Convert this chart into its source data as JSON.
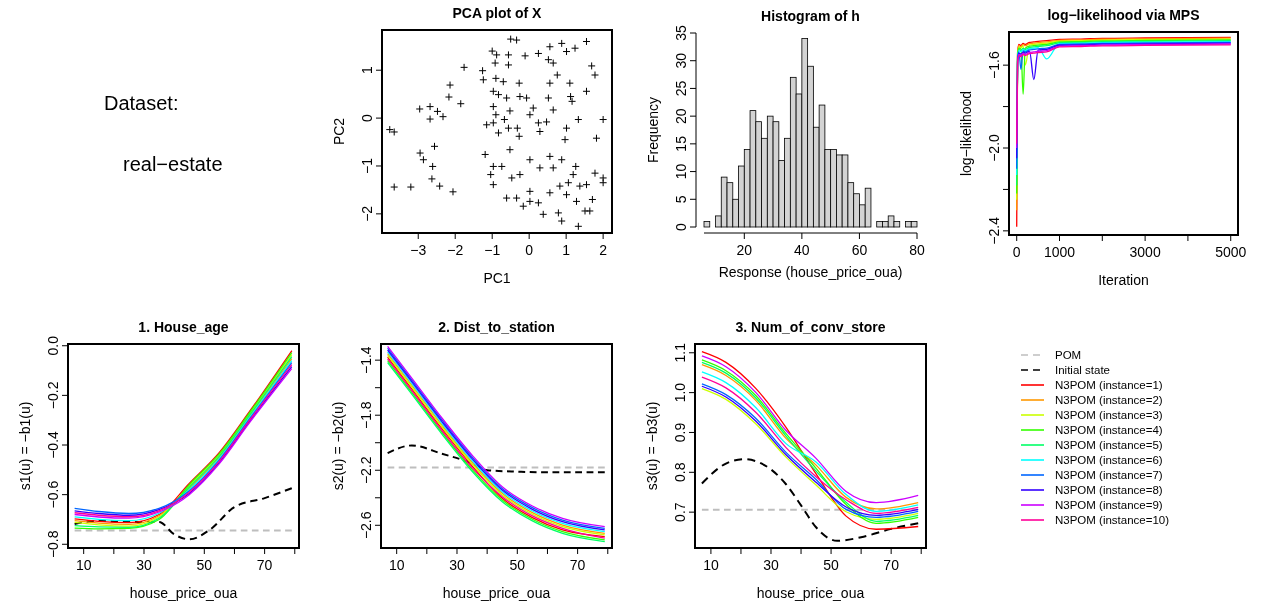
{
  "chart_data": [
    {
      "type": "other",
      "annotations": [
        "Dataset:",
        "real−estate"
      ]
    },
    {
      "type": "scatter",
      "title": "PCA plot of X",
      "xlabel": "PC1",
      "ylabel": "PC2",
      "xlim": [
        -3.98,
        2.24
      ],
      "ylim": [
        -2.4,
        1.84
      ],
      "xticks": [
        {
          "value": -3,
          "label": "−3"
        },
        {
          "value": -2,
          "label": "−2"
        },
        {
          "value": -1,
          "label": "−1"
        },
        0,
        1,
        2
      ],
      "yticks": [
        {
          "value": -2,
          "label": "−2"
        },
        {
          "value": -1,
          "label": "−1"
        },
        0,
        1
      ],
      "marker": "cross",
      "color": "#000000",
      "x": [
        -3.77,
        -3.65,
        -3.65,
        -3.2,
        -2.96,
        -2.68,
        -2.68,
        -2.48,
        -2.33,
        -2.95,
        -2.86,
        -2.56,
        -2.61,
        -2.63,
        -2.42,
        -2.06,
        -2.14,
        -2.17,
        -1.85,
        -1.76,
        -1.26,
        -1.19,
        -1.0,
        -0.88,
        -0.92,
        -1.24,
        -0.9,
        -0.7,
        -0.97,
        -0.83,
        -0.97,
        -0.9,
        -0.97,
        -1.15,
        -0.83,
        -0.67,
        -0.56,
        -0.52,
        -0.61,
        -0.5,
        -0.34,
        -0.56,
        -0.56,
        -0.25,
        -0.27,
        -0.27,
        -0.32,
        -0.07,
        -0.11,
        0.02,
        0.29,
        0.11,
        0.25,
        0.25,
        0.52,
        0.56,
        0.65,
        0.52,
        0.65,
        0.56,
        0.76,
        0.88,
        1.01,
        1.1,
        1.12,
        1.16,
        1.33,
        1.24,
        1.55,
        1.69,
        1.78,
        1.55,
        2.0,
        1.82,
        1.01,
        0.47,
        0.97,
        -0.97,
        -1.04,
        -0.97,
        -0.74,
        -0.52,
        -0.47,
        -0.61,
        -0.34,
        -0.16,
        0.02,
        0.02,
        0.02,
        0.25,
        0.38,
        0.29,
        0.56,
        0.56,
        0.83,
        0.88,
        0.79,
        0.88,
        1.01,
        1.06,
        1.26,
        1.28,
        1.33,
        1.37,
        1.55,
        1.51,
        1.64,
        1.71,
        1.78,
        2.0,
        2.0,
        0.65,
        -0.25,
        1.19
      ],
      "values": [
        -0.24,
        -0.29,
        -1.44,
        -1.44,
        0.19,
        0.24,
        -0.02,
        0.14,
        0.03,
        -0.73,
        -0.87,
        -0.59,
        -1.01,
        -1.27,
        -1.42,
        -1.54,
        0.69,
        0.44,
        0.3,
        1.06,
        0.99,
        -0.76,
        1.4,
        1.32,
        1.15,
        0.8,
        0.83,
        0.76,
        0.56,
        0.49,
        0.24,
        0.07,
        -0.1,
        -0.14,
        -0.31,
        -0.03,
        -0.21,
        0.15,
        0.42,
        1.65,
        1.63,
        1.32,
        1.11,
        0.45,
        0.73,
        -0.38,
        -0.21,
        0.42,
        1.3,
        0.07,
        -0.28,
        0.21,
        -0.1,
        1.35,
        1.22,
        1.49,
        1.15,
        0.42,
        0.17,
        0.73,
        0.9,
        1.56,
        1.39,
        0.73,
        0.45,
        0.35,
        -0.03,
        1.46,
        1.6,
        1.09,
        0.9,
        0.56,
        -0.03,
        -0.42,
        -0.21,
        -0.08,
        -0.45,
        -1.01,
        -1.18,
        -1.39,
        -1.01,
        -0.66,
        -1.25,
        -1.67,
        -1.67,
        -1.84,
        -1.53,
        -0.87,
        -1.74,
        -1.77,
        -2.01,
        -1.04,
        -0.8,
        -1.56,
        -1.42,
        -0.87,
        -1.98,
        -2.15,
        -1.6,
        -1.35,
        -1.01,
        -1.74,
        -2.26,
        -1.42,
        -1.39,
        -1.94,
        -1.94,
        -1.7,
        -1.15,
        -1.35,
        -1.25,
        -1.04,
        -1.18,
        -1.18
      ]
    },
    {
      "type": "histogram",
      "title": "Histogram of h",
      "xlabel": "Response (house_price_oua)",
      "ylabel": "Frequency",
      "color": "#d3d3d3",
      "xlim": [
        6,
        80
      ],
      "ylim": [
        0,
        35
      ],
      "xticks": [
        20,
        40,
        60,
        80
      ],
      "yticks": [
        0,
        5,
        10,
        15,
        20,
        25,
        30,
        35
      ],
      "bins": [
        6,
        8,
        10,
        12,
        14,
        16,
        18,
        20,
        22,
        24,
        26,
        28,
        30,
        32,
        34,
        36,
        38,
        40,
        42,
        44,
        46,
        48,
        50,
        52,
        54,
        56,
        58,
        60,
        62,
        64,
        66,
        68,
        70,
        72,
        74,
        76,
        78,
        80
      ],
      "values": [
        1,
        0,
        2,
        9,
        8,
        5,
        11,
        14,
        21,
        19,
        16,
        20,
        19,
        12,
        16,
        27,
        24,
        34,
        29,
        18,
        22,
        14,
        14,
        13,
        13,
        8,
        6,
        4,
        7,
        0,
        1,
        1,
        2,
        1,
        0,
        1,
        1
      ]
    },
    {
      "type": "line",
      "title": "log−likelihood via MPS",
      "xlabel": "Iteration",
      "ylabel": "log−likelihood",
      "xlim": [
        -180,
        5170
      ],
      "ylim": [
        -2.42,
        -1.44
      ],
      "xticks": [
        0,
        1000,
        {
          "value": 2000,
          "label": null
        },
        3000,
        {
          "value": 4000,
          "label": null
        },
        5000
      ],
      "yticks": [
        {
          "value": -2.4,
          "label": "−2.4"
        },
        {
          "value": -2.2,
          "label": null
        },
        {
          "value": -2.0,
          "label": "−2.0"
        },
        {
          "value": -1.8,
          "label": null
        },
        {
          "value": -1.6,
          "label": "−1.6"
        }
      ],
      "x": [
        0,
        20,
        50,
        100,
        150,
        200,
        300,
        400,
        500,
        700,
        1000,
        1500,
        2000,
        3000,
        5000
      ],
      "series": [
        {
          "color": "#ff0000",
          "values": [
            -2.38,
            -1.54,
            -1.5,
            -1.505,
            -1.495,
            -1.5,
            -1.49,
            -1.488,
            -1.485,
            -1.482,
            -1.476,
            -1.474,
            -1.471,
            -1.469,
            -1.466
          ]
        },
        {
          "color": "#ff9900",
          "values": [
            -2.3,
            -1.546,
            -1.506,
            -1.511,
            -1.501,
            -1.506,
            -1.496,
            -1.494,
            -1.491,
            -1.488,
            -1.48,
            -1.478,
            -1.475,
            -1.473,
            -1.47
          ]
        },
        {
          "color": "#ccff00",
          "values": [
            -2.25,
            -1.552,
            -1.512,
            -1.517,
            -1.507,
            -1.6,
            -1.502,
            -1.5,
            -1.497,
            -1.494,
            -1.484,
            -1.482,
            -1.479,
            -1.477,
            -1.474
          ]
        },
        {
          "color": "#33ff00",
          "values": [
            -2.22,
            -1.558,
            -1.518,
            -1.523,
            -1.74,
            -1.518,
            -1.508,
            -1.506,
            -1.503,
            -1.5,
            -1.488,
            -1.486,
            -1.483,
            -1.481,
            -1.478
          ]
        },
        {
          "color": "#00ff66",
          "values": [
            -2.18,
            -1.564,
            -1.524,
            -1.529,
            -1.519,
            -1.524,
            -1.514,
            -1.512,
            -1.509,
            -1.506,
            -1.492,
            -1.49,
            -1.487,
            -1.485,
            -1.482
          ]
        },
        {
          "color": "#00ffff",
          "values": [
            -2.13,
            -1.57,
            -1.53,
            -1.535,
            -1.525,
            -1.53,
            -1.52,
            -1.518,
            -1.515,
            -1.57,
            -1.496,
            -1.494,
            -1.491,
            -1.489,
            -1.486
          ]
        },
        {
          "color": "#0066ff",
          "values": [
            -2.1,
            -1.576,
            -1.536,
            -1.62,
            -1.531,
            -1.536,
            -1.526,
            -1.524,
            -1.521,
            -1.518,
            -1.5,
            -1.498,
            -1.495,
            -1.493,
            -1.49
          ]
        },
        {
          "color": "#3300ff",
          "values": [
            -2.05,
            -1.582,
            -1.542,
            -1.547,
            -1.537,
            -1.542,
            -1.532,
            -1.67,
            -1.527,
            -1.524,
            -1.504,
            -1.502,
            -1.499,
            -1.497,
            -1.494
          ]
        },
        {
          "color": "#cc00ff",
          "values": [
            -2.0,
            -1.588,
            -1.548,
            -1.553,
            -1.543,
            -1.548,
            -1.538,
            -1.536,
            -1.533,
            -1.53,
            -1.508,
            -1.506,
            -1.503,
            -1.501,
            -1.498
          ]
        },
        {
          "color": "#ff0099",
          "values": [
            -1.98,
            -1.594,
            -1.554,
            -1.559,
            -1.549,
            -1.554,
            -1.544,
            -1.542,
            -1.539,
            -1.536,
            -1.512,
            -1.51,
            -1.507,
            -1.505,
            -1.502
          ]
        }
      ]
    },
    {
      "type": "line",
      "title": "1. House_age",
      "xlabel": "house_price_oua",
      "ylabel": "s1(u) = −b1(u)",
      "xlim": [
        4.8,
        81.4
      ],
      "ylim": [
        -0.815,
        0.007
      ],
      "xticks": [
        10,
        {
          "value": 20,
          "label": null
        },
        30,
        {
          "value": 40,
          "label": null
        },
        50,
        {
          "value": 60,
          "label": null
        },
        70,
        {
          "value": 80,
          "label": null
        }
      ],
      "yticks": [
        {
          "value": -0.8,
          "label": "−0.8"
        },
        {
          "value": -0.6,
          "label": "−0.6"
        },
        {
          "value": -0.4,
          "label": "−0.4"
        },
        {
          "value": -0.2,
          "label": "−0.2"
        },
        {
          "value": 0,
          "label": "0.0"
        }
      ],
      "x": [
        7,
        15,
        25,
        35,
        45,
        55,
        65,
        79
      ],
      "series": [
        {
          "color": "#bebebe",
          "line_style": "dashed",
          "x": [
            7,
            79
          ],
          "values": [
            -0.744,
            -0.744
          ]
        },
        {
          "color": "#000000",
          "line_style": "dashed",
          "x": [
            7,
            15,
            25,
            35,
            40,
            45,
            52,
            60,
            70,
            79
          ],
          "values": [
            -0.718,
            -0.705,
            -0.71,
            -0.71,
            -0.76,
            -0.78,
            -0.74,
            -0.65,
            -0.614,
            -0.574
          ]
        },
        {
          "color": "#ff0000",
          "values": [
            -0.698,
            -0.708,
            -0.713,
            -0.68,
            -0.555,
            -0.43,
            -0.265,
            -0.02
          ]
        },
        {
          "color": "#ff9900",
          "values": [
            -0.705,
            -0.715,
            -0.72,
            -0.685,
            -0.575,
            -0.45,
            -0.285,
            -0.052
          ]
        },
        {
          "color": "#ccff00",
          "values": [
            -0.712,
            -0.722,
            -0.727,
            -0.69,
            -0.565,
            -0.44,
            -0.275,
            -0.036
          ]
        },
        {
          "color": "#33ff00",
          "values": [
            -0.735,
            -0.738,
            -0.736,
            -0.7,
            -0.56,
            -0.435,
            -0.27,
            -0.028
          ]
        },
        {
          "color": "#00ff66",
          "values": [
            -0.725,
            -0.73,
            -0.732,
            -0.695,
            -0.57,
            -0.445,
            -0.28,
            -0.044
          ]
        },
        {
          "color": "#00ffff",
          "values": [
            -0.69,
            -0.7,
            -0.705,
            -0.675,
            -0.58,
            -0.455,
            -0.29,
            -0.06
          ]
        },
        {
          "color": "#0066ff",
          "values": [
            -0.655,
            -0.668,
            -0.676,
            -0.655,
            -0.585,
            -0.46,
            -0.295,
            -0.068
          ]
        },
        {
          "color": "#3300ff",
          "values": [
            -0.665,
            -0.676,
            -0.683,
            -0.66,
            -0.595,
            -0.47,
            -0.305,
            -0.084
          ]
        },
        {
          "color": "#cc00ff",
          "values": [
            -0.68,
            -0.69,
            -0.695,
            -0.67,
            -0.6,
            -0.475,
            -0.31,
            -0.092
          ]
        },
        {
          "color": "#ff0099",
          "values": [
            -0.673,
            -0.683,
            -0.689,
            -0.665,
            -0.59,
            -0.465,
            -0.3,
            -0.076
          ]
        }
      ]
    },
    {
      "type": "line",
      "title": "2. Dist_to_station",
      "xlabel": "house_price_oua",
      "ylabel": "s2(u) = −b2(u)",
      "xlim": [
        4.8,
        81.4
      ],
      "ylim": [
        -2.765,
        -1.2825
      ],
      "xticks": [
        10,
        {
          "value": 20,
          "label": null
        },
        30,
        {
          "value": 40,
          "label": null
        },
        50,
        {
          "value": 60,
          "label": null
        },
        70,
        {
          "value": 80,
          "label": null
        }
      ],
      "yticks": [
        {
          "value": -2.6,
          "label": "−2.6"
        },
        {
          "value": -2.4,
          "label": null
        },
        {
          "value": -2.2,
          "label": "−2.2"
        },
        {
          "value": -2.0,
          "label": null
        },
        {
          "value": -1.8,
          "label": "−1.8"
        },
        {
          "value": -1.6,
          "label": null
        },
        {
          "value": -1.4,
          "label": "−1.4"
        }
      ],
      "x": [
        7,
        15,
        25,
        35,
        45,
        55,
        65,
        79
      ],
      "series": [
        {
          "color": "#bebebe",
          "line_style": "dashed",
          "x": [
            7,
            79
          ],
          "values": [
            -2.18,
            -2.18
          ]
        },
        {
          "color": "#000000",
          "line_style": "dashed",
          "x": [
            7,
            15,
            25,
            35,
            40,
            50,
            60,
            79
          ],
          "values": [
            -2.075,
            -2.02,
            -2.08,
            -2.15,
            -2.2,
            -2.21,
            -2.215,
            -2.215
          ]
        },
        {
          "color": "#ff0000",
          "values": [
            -1.378,
            -1.608,
            -1.898,
            -2.168,
            -2.404,
            -2.544,
            -2.634,
            -2.682
          ]
        },
        {
          "color": "#ff9900",
          "values": [
            -1.352,
            -1.582,
            -1.872,
            -2.142,
            -2.368,
            -2.508,
            -2.598,
            -2.658
          ]
        },
        {
          "color": "#ccff00",
          "values": [
            -1.365,
            -1.595,
            -1.885,
            -2.155,
            -2.38,
            -2.52,
            -2.61,
            -2.67
          ]
        },
        {
          "color": "#33ff00",
          "values": [
            -1.404,
            -1.634,
            -1.924,
            -2.194,
            -2.416,
            -2.556,
            -2.646,
            -2.706
          ]
        },
        {
          "color": "#00ff66",
          "values": [
            -1.417,
            -1.647,
            -1.937,
            -2.207,
            -2.428,
            -2.568,
            -2.658,
            -2.718
          ]
        },
        {
          "color": "#00ffff",
          "values": [
            -1.339,
            -1.569,
            -1.859,
            -2.129,
            -2.356,
            -2.496,
            -2.586,
            -2.646
          ]
        },
        {
          "color": "#0066ff",
          "values": [
            -1.313,
            -1.543,
            -1.833,
            -2.103,
            -2.332,
            -2.472,
            -2.562,
            -2.622
          ]
        },
        {
          "color": "#3300ff",
          "values": [
            -1.326,
            -1.556,
            -1.846,
            -2.116,
            -2.344,
            -2.484,
            -2.574,
            -2.634
          ]
        },
        {
          "color": "#cc00ff",
          "values": [
            -1.3,
            -1.53,
            -1.82,
            -2.09,
            -2.32,
            -2.46,
            -2.55,
            -2.61
          ]
        },
        {
          "color": "#ff0099",
          "values": [
            -1.391,
            -1.621,
            -1.911,
            -2.181,
            -2.392,
            -2.532,
            -2.622,
            -2.694
          ]
        }
      ]
    },
    {
      "type": "line",
      "title": "3. Num_of_conv_store",
      "xlabel": "house_price_oua",
      "ylabel": "s3(u) = −b3(u)",
      "xlim": [
        4.7,
        81.6
      ],
      "ylim": [
        0.61,
        1.122
      ],
      "xticks": [
        10,
        {
          "value": 20,
          "label": null
        },
        30,
        {
          "value": 40,
          "label": null
        },
        50,
        {
          "value": 60,
          "label": null
        },
        70,
        {
          "value": 80,
          "label": null
        }
      ],
      "yticks": [
        0.7,
        0.8,
        0.9,
        {
          "value": 1.0,
          "label": "1.0"
        },
        1.1
      ],
      "legend": "right",
      "x": [
        7,
        15,
        25,
        35,
        45,
        55,
        65,
        79
      ],
      "series": [
        {
          "name": "POM",
          "color": "#bebebe",
          "line_style": "dashed",
          "x": [
            7,
            79
          ],
          "values": [
            0.706,
            0.706
          ]
        },
        {
          "name": "Initial state",
          "color": "#000000",
          "line_style": "dashed",
          "x": [
            7,
            15,
            21,
            30,
            35,
            40,
            45,
            52,
            60,
            70,
            79
          ],
          "values": [
            0.772,
            0.822,
            0.833,
            0.807,
            0.77,
            0.717,
            0.662,
            0.628,
            0.637,
            0.658,
            0.672
          ]
        },
        {
          "name": "N3POM (instance=1)",
          "color": "#ff0000",
          "values": [
            1.103,
            1.076,
            1.01,
            0.913,
            0.796,
            0.69,
            0.657,
            0.664
          ]
        },
        {
          "name": "N3POM (instance=2)",
          "color": "#ff9900",
          "values": [
            1.07,
            1.043,
            0.98,
            0.885,
            0.818,
            0.737,
            0.708,
            0.724
          ]
        },
        {
          "name": "N3POM (instance=3)",
          "color": "#ccff00",
          "values": [
            1.01,
            0.983,
            0.921,
            0.838,
            0.768,
            0.701,
            0.682,
            0.697
          ]
        },
        {
          "name": "N3POM (instance=4)",
          "color": "#33ff00",
          "values": [
            1.082,
            1.055,
            0.992,
            0.897,
            0.81,
            0.719,
            0.672,
            0.687
          ]
        },
        {
          "name": "N3POM (instance=5)",
          "color": "#00ff66",
          "values": [
            1.076,
            1.049,
            0.986,
            0.891,
            0.803,
            0.725,
            0.677,
            0.692
          ]
        },
        {
          "name": "N3POM (instance=6)",
          "color": "#00ffff",
          "values": [
            1.052,
            1.025,
            0.962,
            0.872,
            0.826,
            0.744,
            0.702,
            0.718
          ]
        },
        {
          "name": "N3POM (instance=7)",
          "color": "#0066ff",
          "values": [
            1.022,
            0.995,
            0.935,
            0.85,
            0.782,
            0.707,
            0.687,
            0.702
          ]
        },
        {
          "name": "N3POM (instance=8)",
          "color": "#3300ff",
          "values": [
            1.016,
            0.989,
            0.928,
            0.844,
            0.775,
            0.713,
            0.692,
            0.707
          ]
        },
        {
          "name": "N3POM (instance=9)",
          "color": "#cc00ff",
          "values": [
            1.092,
            1.065,
            1.0,
            0.905,
            0.835,
            0.752,
            0.724,
            0.742
          ]
        },
        {
          "name": "N3POM (instance=10)",
          "color": "#ff0099",
          "values": [
            1.039,
            1.012,
            0.95,
            0.862,
            0.789,
            0.731,
            0.697,
            0.712
          ]
        }
      ]
    }
  ]
}
